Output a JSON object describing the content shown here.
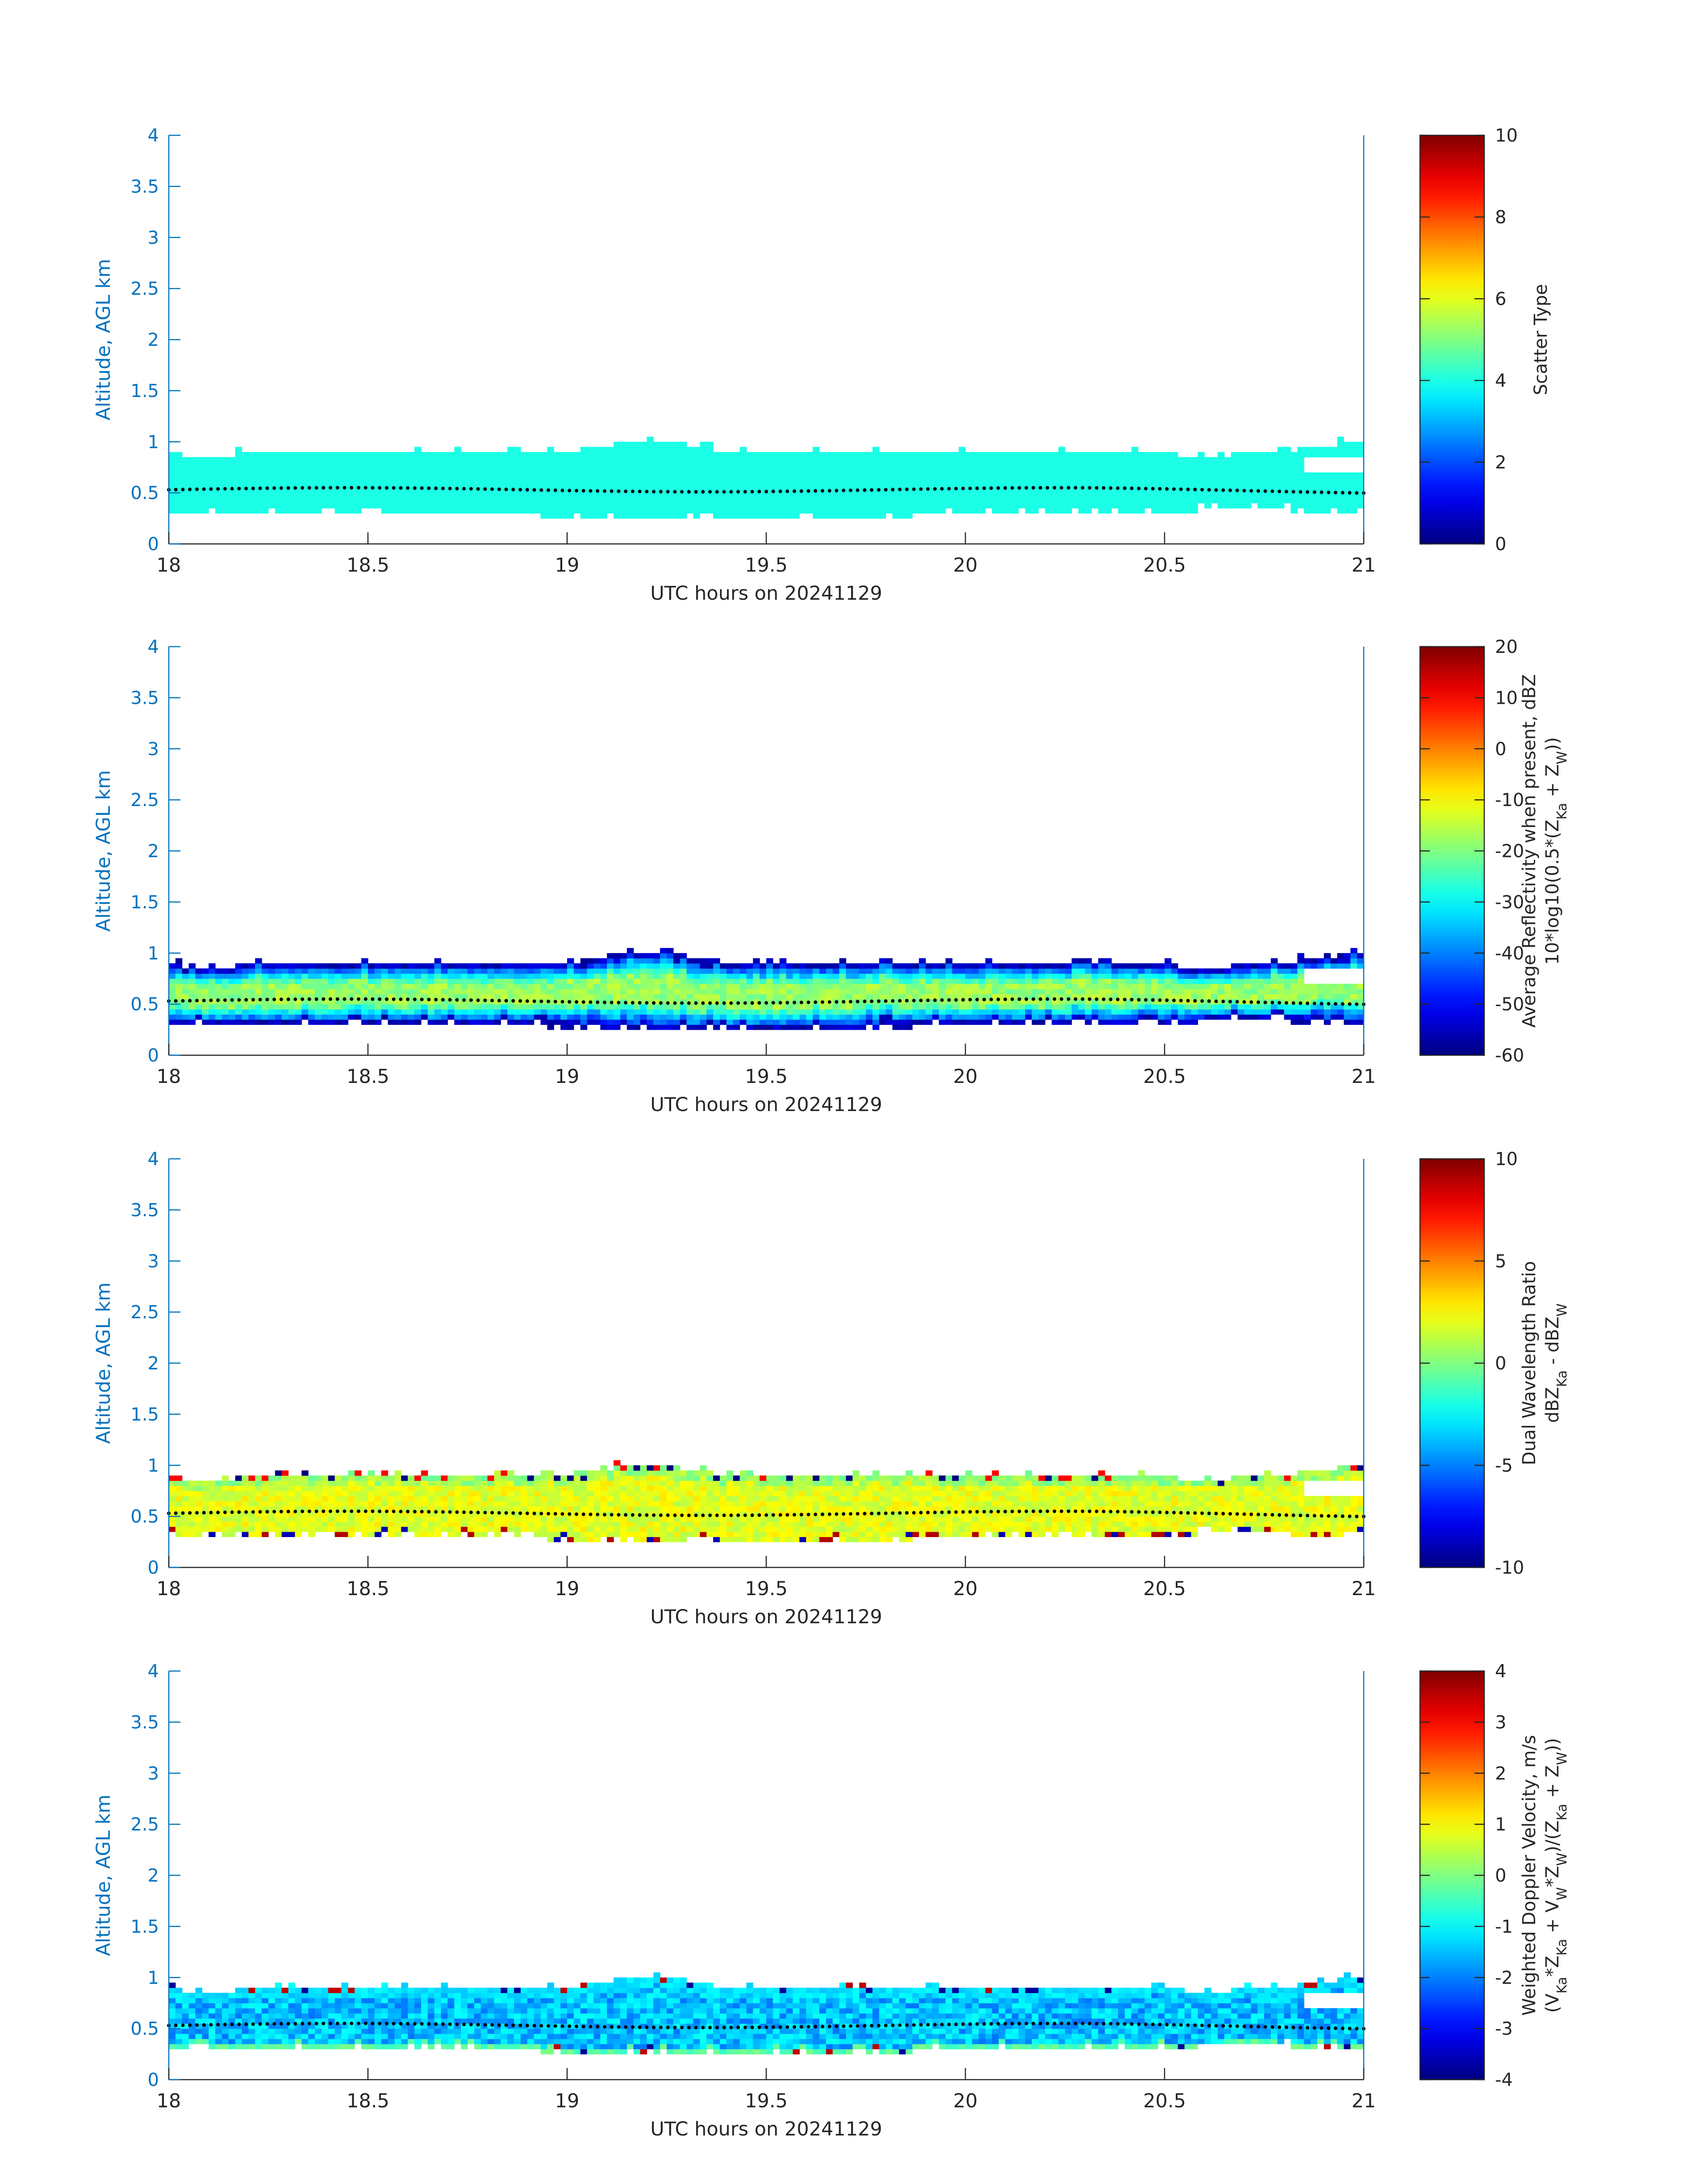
{
  "figure": {
    "axis_color": "#0072BD",
    "text_color": "#262626",
    "colormap": "jet"
  },
  "chart_data": [
    {
      "type": "heatmap",
      "title": "",
      "xlabel": "UTC hours on 20241129",
      "ylabel": "Altitude, AGL km",
      "xlim": [
        18,
        21
      ],
      "ylim": [
        0,
        4
      ],
      "xticks": [
        18,
        18.5,
        19,
        19.5,
        20,
        20.5,
        21
      ],
      "yticks": [
        0,
        0.5,
        1,
        1.5,
        2,
        2.5,
        3,
        3.5,
        4
      ],
      "colorbar": {
        "label_lines": [
          "Scatter Type"
        ],
        "clim": [
          0,
          10
        ],
        "ticks": [
          0,
          2,
          4,
          6,
          8,
          10
        ]
      },
      "field": "scatter_type",
      "typical_value": 4,
      "cloud_base_km": 0.28,
      "cloud_top_km": 0.88,
      "marker_line_km": 0.53
    },
    {
      "type": "heatmap",
      "title": "",
      "xlabel": "UTC hours on 20241129",
      "ylabel": "Altitude, AGL km",
      "xlim": [
        18,
        21
      ],
      "ylim": [
        0,
        4
      ],
      "xticks": [
        18,
        18.5,
        19,
        19.5,
        20,
        20.5,
        21
      ],
      "yticks": [
        0,
        0.5,
        1,
        1.5,
        2,
        2.5,
        3,
        3.5,
        4
      ],
      "colorbar": {
        "label_lines": [
          "Average Reflectivity when present, dBZ",
          "10*log10(0.5*(Z_Ka + Z_W))"
        ],
        "clim": [
          -60,
          20
        ],
        "ticks": [
          -60,
          -50,
          -40,
          -30,
          -20,
          -10,
          0,
          10,
          20
        ]
      },
      "field": "reflectivity",
      "edge_value_dbz": -58,
      "core_value_dbz": -18,
      "cloud_base_km": 0.28,
      "cloud_top_km": 0.88,
      "marker_line_km": 0.53
    },
    {
      "type": "heatmap",
      "title": "",
      "xlabel": "UTC hours on 20241129",
      "ylabel": "Altitude, AGL km",
      "xlim": [
        18,
        21
      ],
      "ylim": [
        0,
        4
      ],
      "xticks": [
        18,
        18.5,
        19,
        19.5,
        20,
        20.5,
        21
      ],
      "yticks": [
        0,
        0.5,
        1,
        1.5,
        2,
        2.5,
        3,
        3.5,
        4
      ],
      "colorbar": {
        "label_lines": [
          "Dual Wavelength Ratio",
          "dBZ_Ka - dBZ_W"
        ],
        "clim": [
          -10,
          10
        ],
        "ticks": [
          -10,
          -5,
          0,
          5,
          10
        ]
      },
      "field": "dwr",
      "typical_value": 2,
      "cloud_base_km": 0.28,
      "cloud_top_km": 0.88,
      "marker_line_km": 0.53
    },
    {
      "type": "heatmap",
      "title": "",
      "xlabel": "UTC hours on 20241129",
      "ylabel": "Altitude, AGL km",
      "xlim": [
        18,
        21
      ],
      "ylim": [
        0,
        4
      ],
      "xticks": [
        18,
        18.5,
        19,
        19.5,
        20,
        20.5,
        21
      ],
      "yticks": [
        0,
        0.5,
        1,
        1.5,
        2,
        2.5,
        3,
        3.5,
        4
      ],
      "colorbar": {
        "label_lines": [
          "Weighted Doppler Velocity, m/s",
          "(V_Ka*Z_Ka + V_W*Z_W)/(Z_Ka + Z_W))"
        ],
        "clim": [
          -4,
          4
        ],
        "ticks": [
          -4,
          -3,
          -2,
          -1,
          0,
          1,
          2,
          3,
          4
        ]
      },
      "field": "velocity",
      "typical_value": -1.5,
      "cloud_base_km": 0.28,
      "cloud_top_km": 0.88,
      "marker_line_km": 0.53
    }
  ]
}
